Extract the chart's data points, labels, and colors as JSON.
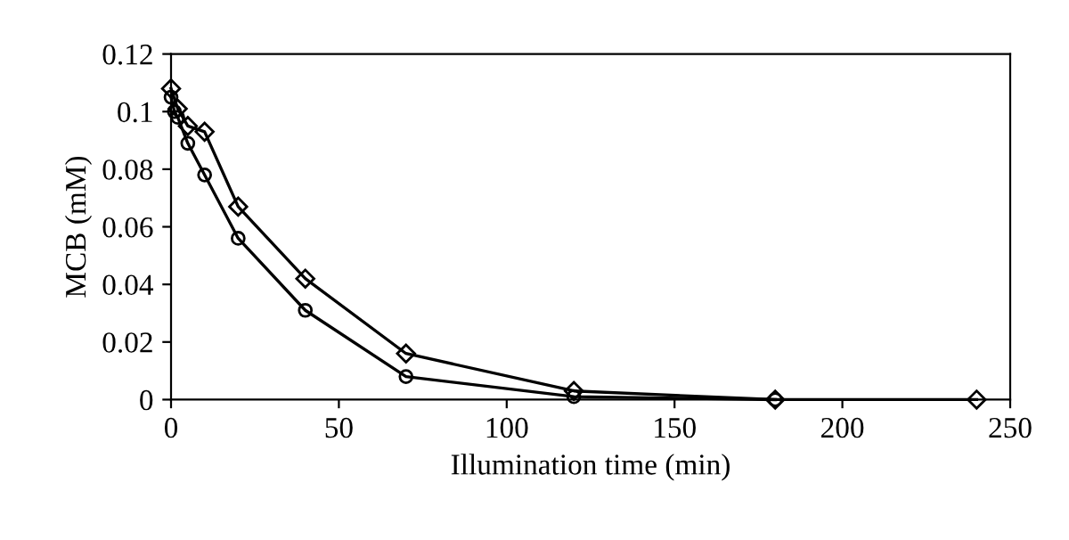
{
  "chart_data": {
    "type": "line",
    "xlabel": "Illumination time (min)",
    "ylabel": "MCB (mM)",
    "xlim": [
      0,
      250
    ],
    "xticks": [
      0,
      50,
      100,
      150,
      200,
      250
    ],
    "ylim": [
      0,
      0.12
    ],
    "yticks": [
      {
        "value": 0,
        "label": "0"
      },
      {
        "value": 0.02,
        "label": "0.02"
      },
      {
        "value": 0.04,
        "label": "0.04"
      },
      {
        "value": 0.06,
        "label": "0.06"
      },
      {
        "value": 0.08,
        "label": "0.08"
      },
      {
        "value": 0.1,
        "label": "0.1"
      },
      {
        "value": 0.12,
        "label": "0.12"
      }
    ],
    "grid": false,
    "legend": false,
    "line_style": "solid",
    "series": [
      {
        "color": "#000000",
        "marker": "diamond",
        "x": [
          0,
          2,
          5,
          10,
          20,
          40,
          70,
          120,
          180,
          240
        ],
        "values": [
          0.108,
          0.101,
          0.095,
          0.093,
          0.067,
          0.042,
          0.016,
          0.003,
          0,
          0
        ]
      },
      {
        "color": "#000000",
        "marker": "circle",
        "x": [
          0,
          1,
          2,
          5,
          10,
          20,
          40,
          70,
          120,
          180
        ],
        "values": [
          0.105,
          0.1,
          0.098,
          0.089,
          0.078,
          0.056,
          0.031,
          0.008,
          0.001,
          0
        ]
      }
    ]
  }
}
